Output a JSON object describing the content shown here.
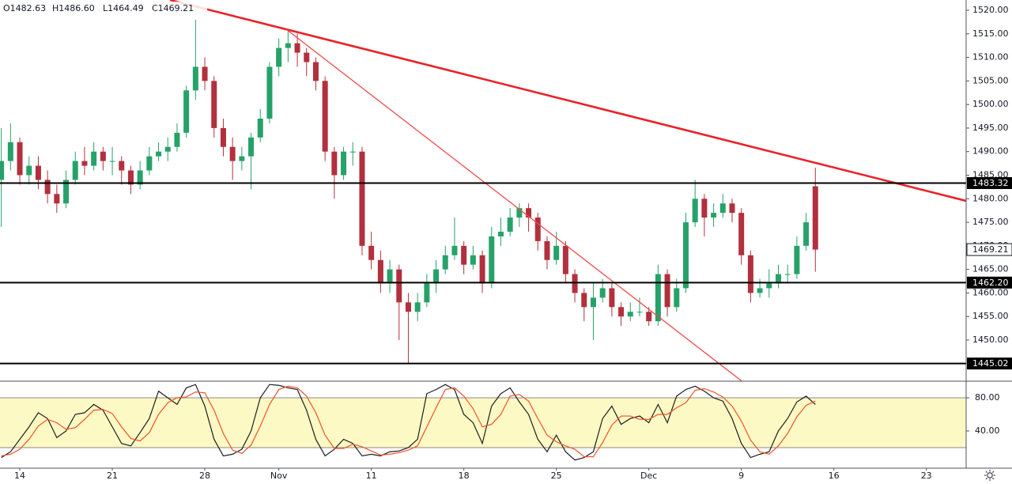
{
  "chart_data": {
    "type": "candlestick",
    "ohlc_legend": [
      "O1482.63",
      "H1486.60",
      "L1464.49",
      "C1469.21"
    ],
    "up_color": "#26a269",
    "down_color": "#b2303d",
    "x": [
      -1,
      -0.5,
      0,
      0.5,
      1,
      1.5,
      2,
      2.5,
      3,
      3.5,
      4,
      4.5,
      5,
      5.5,
      6,
      6.5,
      7,
      7.5,
      8,
      8.5,
      9,
      9.5,
      10,
      10.5,
      11,
      11.5,
      12,
      12.5,
      13,
      13.5,
      14,
      14.5,
      15,
      15.5,
      16,
      16.5,
      17,
      17.5,
      18,
      18.5,
      19,
      19.5,
      20,
      20.5,
      21,
      21.5,
      22,
      22.5,
      23,
      23.5,
      24,
      24.5,
      25,
      25.5,
      26,
      26.5,
      27,
      27.5,
      28,
      28.5,
      29,
      29.5,
      30,
      30.5,
      31,
      31.5,
      32,
      32.5,
      33,
      33.5,
      34,
      34.5,
      35,
      35.5,
      36,
      36.5,
      37,
      37.5,
      38,
      38.5,
      39,
      39.5,
      40,
      40.5,
      41,
      41.5,
      42,
      42.5,
      43
    ],
    "open": [
      1484,
      1488,
      1492,
      1485,
      1487,
      1484,
      1481,
      1479,
      1484,
      1488,
      1487,
      1490,
      1488,
      1488,
      1486,
      1483,
      1486,
      1489,
      1490,
      1491,
      1494,
      1503,
      1508,
      1505,
      1495,
      1491,
      1488,
      1489,
      1493,
      1497,
      1508,
      1512,
      1513,
      1511,
      1509,
      1505,
      1490,
      1485,
      1490,
      1490,
      1470,
      1467,
      1462,
      1465,
      1458,
      1456,
      1458,
      1462,
      1465,
      1468,
      1470,
      1466,
      1468,
      1462,
      1472,
      1473,
      1476,
      1478,
      1476,
      1471,
      1467,
      1470,
      1464,
      1460,
      1457,
      1459,
      1461,
      1457,
      1455,
      1456,
      1456,
      1454,
      1464,
      1457,
      1461,
      1475,
      1480,
      1476,
      1477,
      1479,
      1477,
      1468,
      1460,
      1461,
      1462,
      1464,
      1464,
      1470,
      1482.63
    ],
    "high": [
      1495,
      1496,
      1493,
      1489,
      1489,
      1486,
      1483,
      1486,
      1490,
      1491,
      1492,
      1491,
      1491,
      1489,
      1487,
      1488,
      1491,
      1492,
      1493,
      1496,
      1504,
      1518,
      1510,
      1506,
      1497,
      1493,
      1491,
      1494,
      1499,
      1509,
      1514,
      1516,
      1515,
      1512,
      1510,
      1506,
      1491,
      1491,
      1492,
      1491,
      1473,
      1469,
      1467,
      1466,
      1460,
      1460,
      1464,
      1467,
      1470,
      1476,
      1471,
      1470,
      1469,
      1474,
      1476,
      1478,
      1479,
      1479,
      1477,
      1472,
      1473,
      1471,
      1465,
      1461,
      1462,
      1463,
      1462,
      1458,
      1458,
      1459,
      1457,
      1466,
      1465,
      1463,
      1477,
      1484,
      1481,
      1479,
      1481,
      1480,
      1478,
      1469,
      1463,
      1465,
      1466,
      1466,
      1472,
      1477,
      1486.6
    ],
    "low": [
      1474,
      1486,
      1483,
      1483,
      1482,
      1479,
      1477,
      1478,
      1483,
      1485,
      1486,
      1486,
      1485,
      1483,
      1481,
      1482,
      1485,
      1488,
      1488,
      1490,
      1493,
      1501,
      1503,
      1493,
      1489,
      1484,
      1486,
      1482,
      1492,
      1496,
      1506,
      1509,
      1508,
      1506,
      1503,
      1488,
      1480,
      1484,
      1487,
      1468,
      1465,
      1460,
      1460,
      1450,
      1445,
      1454,
      1457,
      1460,
      1464,
      1467,
      1464,
      1465,
      1460,
      1461,
      1470,
      1472,
      1474,
      1473,
      1469,
      1465,
      1466,
      1462,
      1458,
      1454,
      1450,
      1458,
      1455,
      1453,
      1454,
      1455,
      1453,
      1453,
      1455,
      1456,
      1460,
      1474,
      1472,
      1474,
      1476,
      1475,
      1466,
      1458,
      1459,
      1459,
      1461,
      1462,
      1463,
      1469,
      1464.49
    ],
    "close": [
      1488,
      1492,
      1485,
      1487,
      1484,
      1481,
      1479,
      1484,
      1488,
      1487,
      1490,
      1488,
      1488,
      1486,
      1483,
      1486,
      1489,
      1490,
      1491,
      1494,
      1503,
      1508,
      1505,
      1495,
      1491,
      1488,
      1489,
      1493,
      1497,
      1508,
      1512,
      1513,
      1511,
      1509,
      1505,
      1490,
      1485,
      1490,
      1490,
      1470,
      1467,
      1462,
      1465,
      1458,
      1456,
      1458,
      1462,
      1465,
      1468,
      1470,
      1466,
      1468,
      1462,
      1472,
      1473,
      1476,
      1478,
      1476,
      1471,
      1467,
      1470,
      1464,
      1460,
      1457,
      1459,
      1461,
      1457,
      1455,
      1456,
      1456,
      1454,
      1464,
      1457,
      1461,
      1475,
      1480,
      1476,
      1477,
      1479,
      1477,
      1468,
      1460,
      1461,
      1462,
      1464,
      1464,
      1470,
      1475,
      1469.21
    ],
    "xlim": [
      -1.07,
      51.15
    ],
    "xticks": [
      {
        "value": 0,
        "label": "14"
      },
      {
        "value": 5,
        "label": "21"
      },
      {
        "value": 10,
        "label": "28"
      },
      {
        "value": 14,
        "label": "Nov"
      },
      {
        "value": 19,
        "label": "11"
      },
      {
        "value": 24,
        "label": "18"
      },
      {
        "value": 29,
        "label": "25"
      },
      {
        "value": 34,
        "label": "Dec"
      },
      {
        "value": 39,
        "label": "9"
      },
      {
        "value": 44,
        "label": "16"
      },
      {
        "value": 49,
        "label": "23"
      }
    ],
    "ylim": [
      1441.27,
      1522.18
    ],
    "yticks": [
      {
        "value": 1450,
        "label": "1450.00"
      },
      {
        "value": 1455,
        "label": "1455.00"
      },
      {
        "value": 1460,
        "label": "1460.00"
      },
      {
        "value": 1465,
        "label": "1465.00"
      },
      {
        "value": 1470,
        "label": "1470.00"
      },
      {
        "value": 1475,
        "label": "1475.00"
      },
      {
        "value": 1480,
        "label": "1480.00"
      },
      {
        "value": 1485,
        "label": "1485.00"
      },
      {
        "value": 1490,
        "label": "1490.00"
      },
      {
        "value": 1495,
        "label": "1495.00"
      },
      {
        "value": 1500,
        "label": "1500.00"
      },
      {
        "value": 1505,
        "label": "1505.00"
      },
      {
        "value": 1510,
        "label": "1510.00"
      },
      {
        "value": 1515,
        "label": "1515.00"
      },
      {
        "value": 1520,
        "label": "1520.00"
      }
    ],
    "grid": false,
    "levels": [
      1483.32,
      {
        "value": 1462.2,
        "label": "1462.20"
      },
      1445.02
    ],
    "level_color": "#000000",
    "trendlines": [
      {
        "color": "#e8232a",
        "points": [
          [
            8.12,
            1522.18
          ],
          [
            51.15,
            1479.54
          ]
        ]
      },
      {
        "color": "#f04a4a",
        "points": [
          [
            14.4,
            1515.97
          ],
          [
            39.03,
            1441.27
          ]
        ]
      }
    ],
    "indicator": {
      "type": "stochastic",
      "ylim": [
        -4.8,
        100
      ],
      "yticks": [
        {
          "value": 80,
          "label": "80.00"
        },
        {
          "value": 40,
          "label": "40.00"
        }
      ],
      "band": [
        20,
        80
      ],
      "band_color": "#fdf9c4",
      "series": [
        {
          "color": "#1e1e1e",
          "values": [
            8,
            15,
            30,
            45,
            62,
            55,
            32,
            40,
            60,
            62,
            72,
            65,
            45,
            25,
            22,
            38,
            55,
            88,
            80,
            72,
            92,
            96,
            70,
            30,
            10,
            12,
            18,
            40,
            80,
            96,
            95,
            92,
            90,
            65,
            30,
            10,
            18,
            30,
            25,
            10,
            12,
            10,
            15,
            16,
            20,
            30,
            85,
            90,
            96,
            90,
            60,
            50,
            25,
            70,
            85,
            92,
            75,
            60,
            30,
            15,
            35,
            15,
            5,
            8,
            15,
            55,
            70,
            48,
            55,
            58,
            50,
            72,
            50,
            82,
            90,
            94,
            88,
            80,
            76,
            55,
            25,
            8,
            12,
            15,
            40,
            55,
            75,
            82,
            72
          ]
        },
        {
          "color": "#f0522a",
          "values": [
            10,
            12,
            18,
            30,
            46,
            54,
            50,
            42,
            44,
            54,
            65,
            66,
            61,
            45,
            31,
            28,
            38,
            60,
            74,
            80,
            81,
            87,
            86,
            65,
            37,
            17,
            13,
            23,
            46,
            72,
            90,
            94,
            92,
            82,
            62,
            35,
            19,
            19,
            24,
            21,
            16,
            11,
            12,
            14,
            17,
            22,
            45,
            68,
            90,
            92,
            82,
            67,
            45,
            48,
            60,
            82,
            84,
            76,
            55,
            35,
            27,
            22,
            18,
            9,
            9,
            26,
            47,
            58,
            58,
            54,
            54,
            60,
            60,
            68,
            74,
            89,
            91,
            87,
            81,
            70,
            52,
            29,
            15,
            12,
            22,
            37,
            57,
            71,
            76
          ]
        }
      ]
    }
  }
}
